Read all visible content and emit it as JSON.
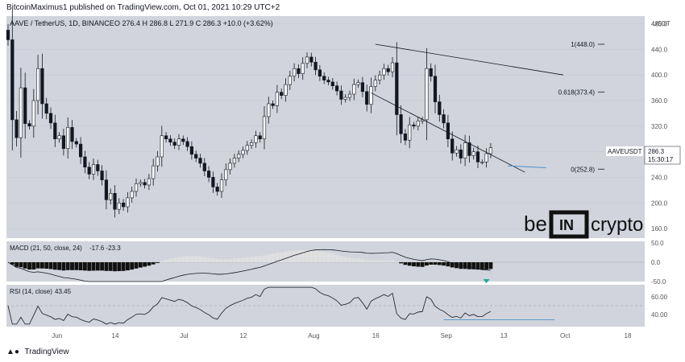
{
  "header": {
    "publisher_line": "BitcoinMaximus1 published on TradingView.com, Oct 01, 2021 10:29 UTC+2"
  },
  "footer": {
    "logo_icon": "tradingview-logo-icon",
    "brand": "TradingView"
  },
  "watermark": {
    "text_left": "be",
    "text_box": "IN",
    "text_right": "crypto"
  },
  "chart_data": {
    "type": "candlestick",
    "symbol_line": "AAVE / TetherUS, 1D, BINANCE",
    "ohlc_line": "O 276.4  H 286.8  L 271.9  C 286.3  +10.0 (+3.62%)",
    "currency_label": "USDT",
    "ticker": "AAVEUSDT",
    "last_price": "286.3",
    "countdown": "15:30:17",
    "ylim": [
      145,
      492
    ],
    "y_ticks": [
      "480.0",
      "440.0",
      "400.0",
      "360.0",
      "320.0",
      "280.0",
      "240.0",
      "200.0",
      "160.0"
    ],
    "x_ticks": [
      "Jun",
      "14",
      "Jul",
      "12",
      "Aug",
      "16",
      "Sep",
      "13",
      "Oct",
      "18"
    ],
    "closes": [
      455,
      330,
      302,
      380,
      324,
      320,
      360,
      410,
      355,
      340,
      325,
      300,
      305,
      285,
      318,
      296,
      292,
      272,
      256,
      245,
      260,
      250,
      236,
      205,
      215,
      190,
      200,
      194,
      208,
      218,
      230,
      232,
      228,
      238,
      258,
      272,
      305,
      300,
      295,
      290,
      300,
      296,
      288,
      276,
      270,
      262,
      250,
      240,
      225,
      218,
      236,
      252,
      262,
      270,
      276,
      282,
      290,
      294,
      305,
      300,
      335,
      355,
      352,
      373,
      368,
      385,
      398,
      410,
      402,
      418,
      428,
      420,
      408,
      398,
      392,
      389,
      383,
      375,
      362,
      365,
      370,
      385,
      388,
      374,
      354,
      382,
      392,
      400,
      410,
      405,
      419,
      338,
      308,
      298,
      322,
      320,
      328,
      330,
      410,
      398,
      358,
      338,
      325,
      300,
      278,
      283,
      270,
      294,
      274,
      280,
      264,
      264,
      277,
      286.3
    ],
    "fib_levels": [
      {
        "label": "1(448.0)",
        "value": 448.0
      },
      {
        "label": "0.618(373.4)",
        "value": 373.4
      },
      {
        "label": "0(252.8)",
        "value": 252.8
      }
    ],
    "macd": {
      "title": "MACD (21, 50, close, 24)",
      "values": "-17.6  -23.3",
      "ylim": [
        -50,
        50
      ],
      "y_ticks": [
        "50.0",
        "0.0",
        "-50.0"
      ],
      "colors": {
        "positive": "#e0e0e0",
        "negative": "#111111",
        "line": "#131722",
        "marker": "#26a69a"
      }
    },
    "rsi": {
      "title": "RSI (14, close)",
      "value": "43.45",
      "ylim": [
        28,
        72
      ],
      "y_ticks": [
        "60.00",
        "40.00"
      ],
      "upper_band": 50,
      "line_color": "#131722",
      "divergence_color": "#4a90c8"
    },
    "colors": {
      "up": "#ffffff",
      "down": "#131722",
      "background": "#d1d4dc",
      "trendline": "#131722",
      "support": "#4a90c8"
    }
  }
}
